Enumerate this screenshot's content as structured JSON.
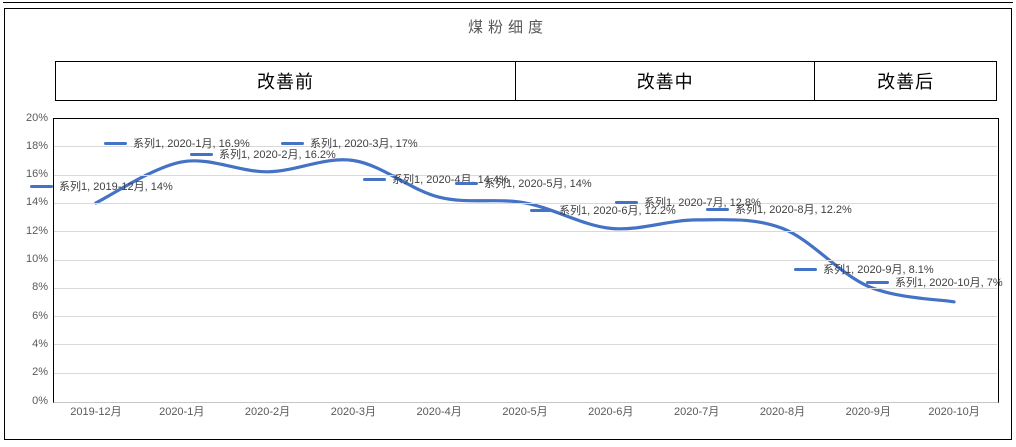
{
  "title": "煤粉细度",
  "phase_header": {
    "items": [
      {
        "label": "改善前"
      },
      {
        "label": "改善中"
      },
      {
        "label": "改善后"
      }
    ]
  },
  "chart_data": {
    "type": "line",
    "title": "煤粉细度",
    "categories": [
      "2019-12月",
      "2020-1月",
      "2020-2月",
      "2020-3月",
      "2020-4月",
      "2020-5月",
      "2020-6月",
      "2020-7月",
      "2020-8月",
      "2020-9月",
      "2020-10月"
    ],
    "series": [
      {
        "name": "系列1",
        "values": [
          14,
          16.9,
          16.2,
          17,
          14.4,
          14,
          12.2,
          12.8,
          12.2,
          8.1,
          7
        ]
      }
    ],
    "data_labels": [
      "系列1, 2019-12月, 14%",
      "系列1, 2020-1月, 16.9%",
      "系列1, 2020-2月, 16.2%",
      "系列1, 2020-3月, 17%",
      "系列1, 2020-4月, 14.4%",
      "系列1, 2020-5月, 14%",
      "系列1, 2020-6月, 12.2%",
      "系列1, 2020-7月, 12.8%",
      "系列1, 2020-8月, 12.2%",
      "系列1, 2020-9月, 8.1%",
      "系列1, 2020-10月, 7%"
    ],
    "ylim": [
      0,
      20
    ],
    "ytick_step": 2,
    "ytick_suffix": "%",
    "grid": true,
    "legend_position": "none",
    "smooth": true,
    "line_color": "#4472C4",
    "gridline_color": "#d9d9d9",
    "axis_label_color": "#595959",
    "data_label_color": "#404040"
  }
}
